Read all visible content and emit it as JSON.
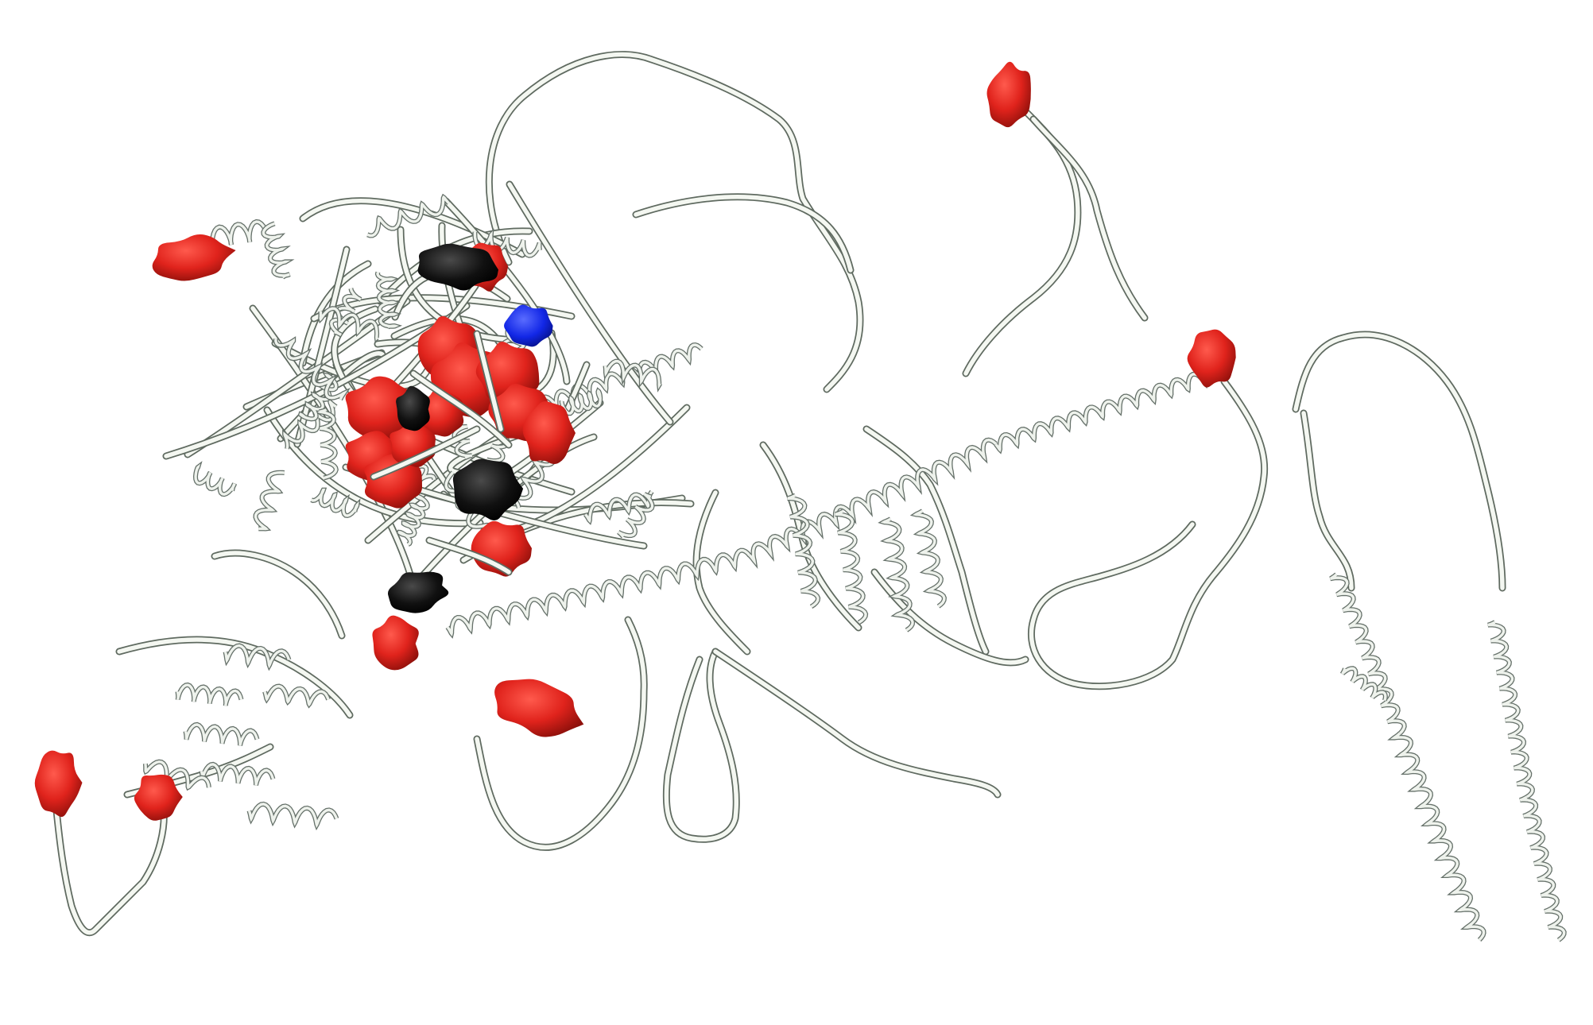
{
  "scene": {
    "background": "#ffffff",
    "ribbon_color": "#e9eee6",
    "ribbon_edge_color": "#5f6a60",
    "highlight_colors": {
      "red": "#e0231c",
      "black": "#0d0d0d",
      "blue": "#1227e6"
    }
  }
}
